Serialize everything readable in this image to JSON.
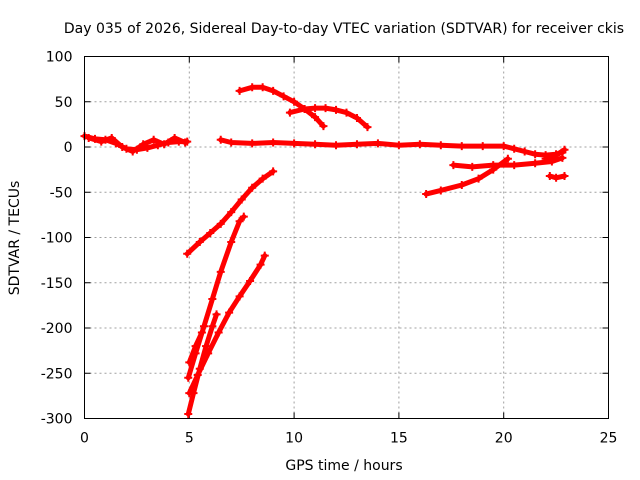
{
  "chart_data": {
    "type": "line",
    "title": "Day 035 of 2026, Sidereal Day-to-day VTEC variation (SDTVAR) for receiver ckis",
    "xlabel": "GPS time / hours",
    "ylabel": "SDTVAR / TECUs",
    "xlim": [
      0,
      25
    ],
    "ylim": [
      -300,
      100
    ],
    "xticks": [
      0,
      5,
      10,
      15,
      20,
      25
    ],
    "yticks": [
      100,
      50,
      0,
      -50,
      -100,
      -150,
      -200,
      -250,
      -300
    ],
    "grid": true,
    "colors": {
      "series": "#ff0000"
    },
    "series": [
      {
        "points": [
          [
            0,
            12
          ],
          [
            0.5,
            9
          ],
          [
            1,
            8
          ],
          [
            1.5,
            4
          ],
          [
            2,
            -2
          ],
          [
            2.5,
            -3
          ],
          [
            3,
            -1
          ],
          [
            3.5,
            2
          ],
          [
            4,
            5
          ],
          [
            4.5,
            6
          ],
          [
            4.9,
            6
          ]
        ]
      },
      {
        "points": [
          [
            0.2,
            10
          ],
          [
            0.8,
            6
          ],
          [
            1.3,
            10
          ],
          [
            1.8,
            0
          ],
          [
            2.3,
            -5
          ],
          [
            2.8,
            3
          ],
          [
            3.3,
            8
          ],
          [
            3.8,
            3
          ],
          [
            4.3,
            10
          ],
          [
            4.8,
            5
          ]
        ]
      },
      {
        "points": [
          [
            6.5,
            8
          ],
          [
            7,
            5
          ],
          [
            8,
            4
          ],
          [
            9,
            5
          ],
          [
            10,
            4
          ],
          [
            11,
            3
          ],
          [
            12,
            2
          ],
          [
            13,
            3
          ],
          [
            14,
            4
          ],
          [
            15,
            2
          ],
          [
            16,
            3
          ],
          [
            17,
            2
          ],
          [
            18,
            1
          ],
          [
            19,
            1
          ],
          [
            20,
            1
          ],
          [
            20.5,
            -2
          ],
          [
            21,
            -5
          ],
          [
            21.5,
            -8
          ],
          [
            22,
            -9
          ],
          [
            22.5,
            -8
          ],
          [
            22.8,
            -6
          ]
        ]
      },
      {
        "points": [
          [
            7.4,
            62
          ],
          [
            8,
            66
          ],
          [
            8.5,
            66
          ],
          [
            9,
            62
          ],
          [
            9.5,
            56
          ],
          [
            10,
            50
          ],
          [
            10.5,
            42
          ],
          [
            11,
            33
          ],
          [
            11.4,
            23
          ]
        ]
      },
      {
        "points": [
          [
            9.8,
            38
          ],
          [
            10.5,
            42
          ],
          [
            11,
            43
          ],
          [
            11.5,
            43
          ],
          [
            12,
            41
          ],
          [
            12.5,
            38
          ],
          [
            13,
            32
          ],
          [
            13.5,
            22
          ]
        ]
      },
      {
        "points": [
          [
            16.3,
            -52
          ],
          [
            17,
            -48
          ],
          [
            18,
            -42
          ],
          [
            18.8,
            -35
          ],
          [
            19.5,
            -25
          ],
          [
            20.2,
            -13
          ]
        ]
      },
      {
        "points": [
          [
            17.6,
            -20
          ],
          [
            18.5,
            -22
          ],
          [
            19.5,
            -20
          ],
          [
            20.5,
            -20
          ],
          [
            21.5,
            -18
          ],
          [
            22.3,
            -16
          ],
          [
            22.8,
            -12
          ]
        ]
      },
      {
        "points": [
          [
            22,
            -13
          ],
          [
            22.5,
            -9
          ],
          [
            22.9,
            -3
          ]
        ]
      },
      {
        "points": [
          [
            22.2,
            -32
          ],
          [
            22.5,
            -34
          ],
          [
            22.9,
            -32
          ]
        ]
      },
      {
        "points": [
          [
            4.9,
            -118
          ],
          [
            5.5,
            -105
          ],
          [
            6,
            -95
          ],
          [
            6.5,
            -85
          ],
          [
            7,
            -72
          ],
          [
            7.5,
            -58
          ],
          [
            8,
            -45
          ],
          [
            8.5,
            -35
          ],
          [
            9,
            -27
          ]
        ]
      },
      {
        "points": [
          [
            4.95,
            -295
          ],
          [
            5.2,
            -272
          ],
          [
            5.5,
            -245
          ],
          [
            5.8,
            -220
          ],
          [
            6.1,
            -198
          ],
          [
            6.3,
            -185
          ]
        ]
      },
      {
        "points": [
          [
            4.95,
            -255
          ],
          [
            5.3,
            -228
          ],
          [
            5.7,
            -198
          ],
          [
            6.1,
            -168
          ],
          [
            6.5,
            -138
          ],
          [
            7,
            -105
          ],
          [
            7.4,
            -82
          ],
          [
            7.6,
            -77
          ]
        ]
      },
      {
        "points": [
          [
            5,
            -272
          ],
          [
            5.4,
            -252
          ],
          [
            5.9,
            -228
          ],
          [
            6.4,
            -205
          ],
          [
            6.9,
            -183
          ],
          [
            7.4,
            -165
          ],
          [
            7.9,
            -148
          ],
          [
            8.4,
            -130
          ],
          [
            8.6,
            -120
          ]
        ]
      },
      {
        "points": [
          [
            5,
            -238
          ],
          [
            5.3,
            -220
          ],
          [
            5.6,
            -205
          ]
        ]
      }
    ]
  }
}
